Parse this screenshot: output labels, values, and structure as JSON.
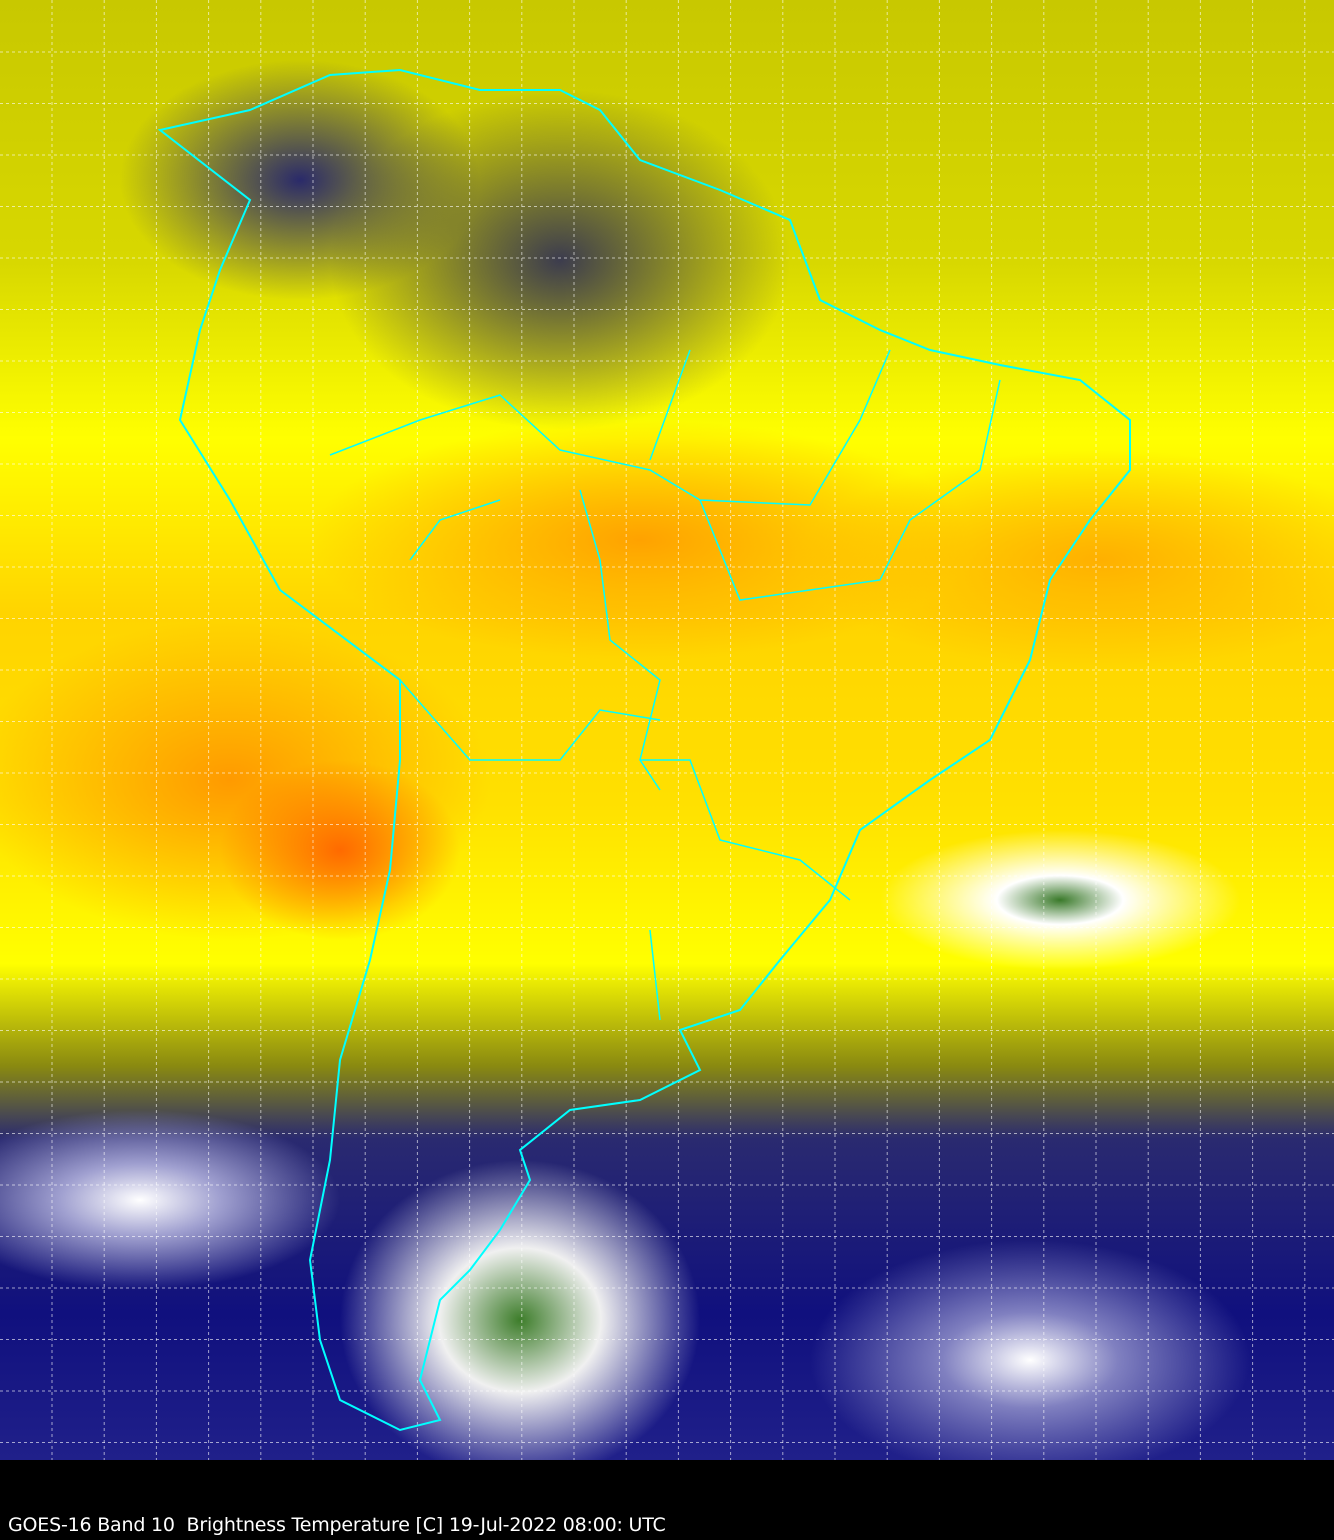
{
  "caption": "GOES-16 Band 10  Brightness Temperature [C] 19-Jul-2022 08:00: UTC",
  "colors": {
    "border_lines": "#00ffff",
    "grid_lines": "#ffffff",
    "background": "#000000"
  },
  "map": {
    "satellite": "GOES-16",
    "band": "10",
    "region": "South America",
    "graticule": true
  }
}
